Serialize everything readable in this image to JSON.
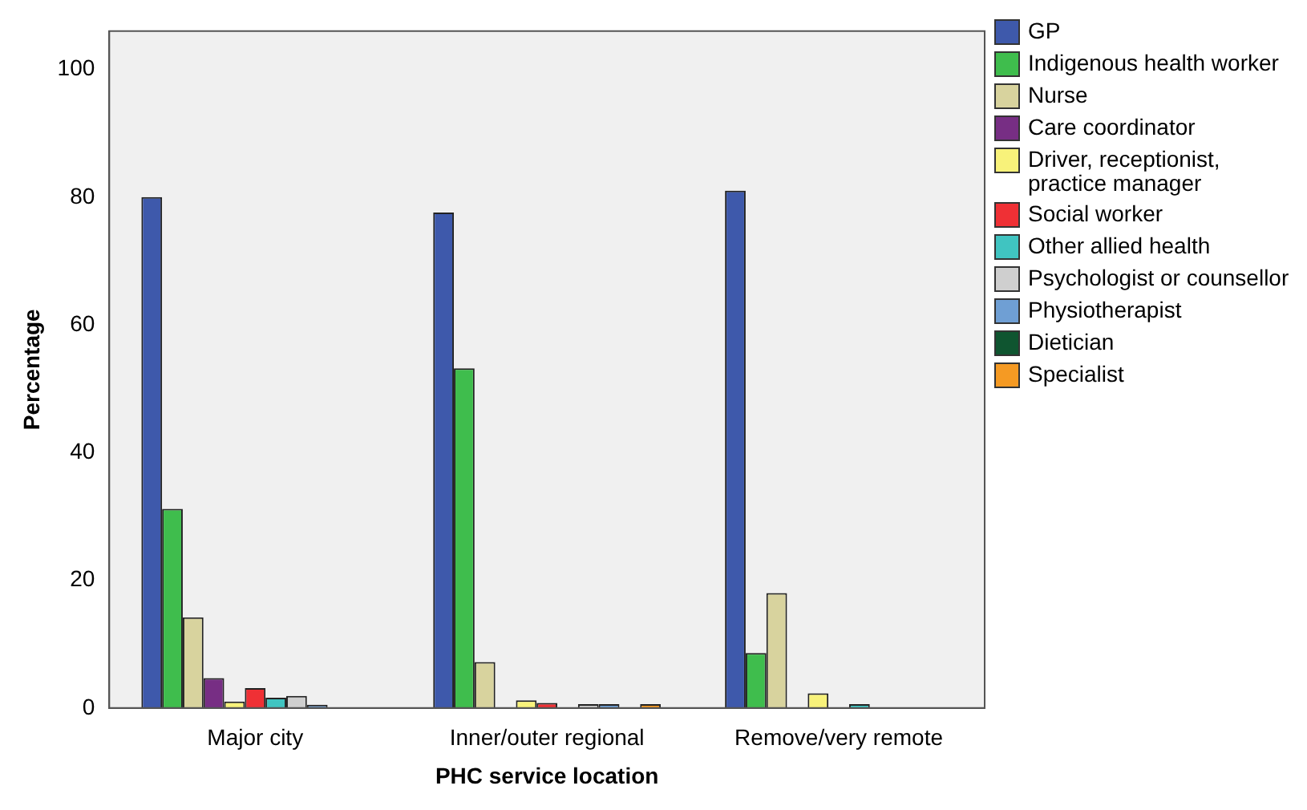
{
  "chart_data": {
    "type": "bar",
    "xlabel": "PHC service location",
    "ylabel": "Percentage",
    "categories": [
      "Major city",
      "Inner/outer regional",
      "Remove/very remote"
    ],
    "series": [
      {
        "name": "GP",
        "color": "#3e59ab",
        "values": [
          80,
          77.6,
          81
        ]
      },
      {
        "name": "Indigenous health worker",
        "color": "#3fbd4d",
        "values": [
          31.2,
          53.2,
          8.6
        ]
      },
      {
        "name": "Nurse",
        "color": "#d8d39e",
        "values": [
          14.2,
          7.2,
          18
        ]
      },
      {
        "name": "Care coordinator",
        "color": "#772e84",
        "values": [
          4.7,
          0,
          0
        ]
      },
      {
        "name": "Driver, receptionist, practice manager",
        "color": "#f8f27a",
        "values": [
          1,
          1.2,
          2.3
        ]
      },
      {
        "name": "Social worker",
        "color": "#ef3035",
        "values": [
          3.1,
          0.8,
          0
        ]
      },
      {
        "name": "Other allied health",
        "color": "#40c4c1",
        "values": [
          1.6,
          0,
          0.6
        ]
      },
      {
        "name": "Psychologist or counsellor",
        "color": "#cfcfcf",
        "values": [
          1.9,
          0.6,
          0
        ]
      },
      {
        "name": "Physiotherapist",
        "color": "#6f9fd4",
        "values": [
          0.5,
          0.6,
          0
        ]
      },
      {
        "name": "Dietician",
        "color": "#0f5530",
        "values": [
          null,
          0,
          0
        ]
      },
      {
        "name": "Specialist",
        "color": "#f59a23",
        "values": [
          null,
          0.6,
          0
        ]
      }
    ],
    "ylim": [
      0,
      106
    ],
    "yticks": [
      0,
      20,
      40,
      60,
      80,
      100
    ],
    "grid": false,
    "legend": "right"
  }
}
